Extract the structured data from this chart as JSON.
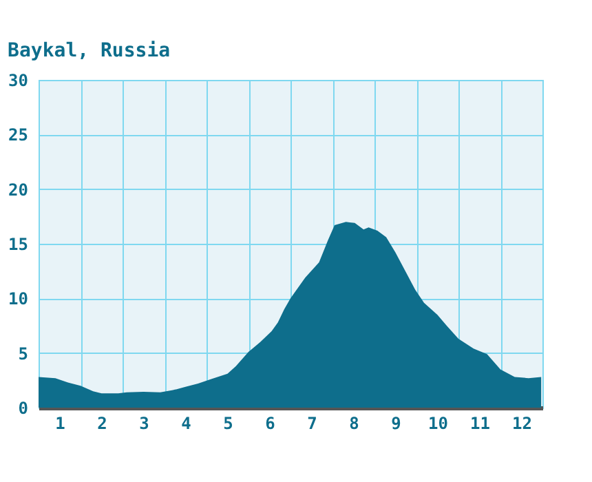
{
  "chart_data": {
    "type": "area",
    "title": "Baykal, Russia",
    "x": [
      0.5,
      0.9,
      1.2,
      1.5,
      1.8,
      2.0,
      2.4,
      2.6,
      3.0,
      3.4,
      3.7,
      4.0,
      4.3,
      4.6,
      5.0,
      5.2,
      5.5,
      5.78,
      6.05,
      6.2,
      6.35,
      6.5,
      6.85,
      7.18,
      7.39,
      7.55,
      7.82,
      8.03,
      8.24,
      8.36,
      8.57,
      8.78,
      9.0,
      9.22,
      9.47,
      9.68,
      10.0,
      10.22,
      10.5,
      10.86,
      11.18,
      11.5,
      11.84,
      12.17,
      12.47
    ],
    "series": [
      {
        "color": "#0e6e8c",
        "values": [
          2.8,
          2.7,
          2.3,
          2.0,
          1.5,
          1.3,
          1.3,
          1.4,
          1.45,
          1.4,
          1.6,
          1.9,
          2.2,
          2.6,
          3.1,
          3.8,
          5.1,
          6.0,
          7.0,
          7.8,
          9.0,
          10.0,
          11.9,
          13.3,
          15.3,
          16.7,
          17.0,
          16.9,
          16.3,
          16.5,
          16.2,
          15.6,
          14.2,
          12.6,
          10.8,
          9.6,
          8.5,
          7.5,
          6.3,
          5.4,
          4.9,
          3.5,
          2.8,
          2.7,
          2.8
        ]
      }
    ],
    "xlim": [
      0.5,
      12.5
    ],
    "xticks": [
      1,
      2,
      3,
      4,
      5,
      6,
      7,
      8,
      9,
      10,
      11,
      12,
      {
        "value": 1.5,
        "label": null
      },
      {
        "value": 2.5,
        "label": null
      },
      {
        "value": 3.5,
        "label": null
      },
      {
        "value": 4.5,
        "label": null
      },
      {
        "value": 5.5,
        "label": null
      },
      {
        "value": 6.5,
        "label": null
      },
      {
        "value": 7.5,
        "label": null
      },
      {
        "value": 8.5,
        "label": null
      },
      {
        "value": 9.5,
        "label": null
      },
      {
        "value": 10.5,
        "label": null
      },
      {
        "value": 11.5,
        "label": null
      }
    ],
    "ylim": [
      0,
      30
    ],
    "yticks": [
      0,
      5,
      10,
      15,
      20,
      25,
      30
    ],
    "grid": true
  }
}
